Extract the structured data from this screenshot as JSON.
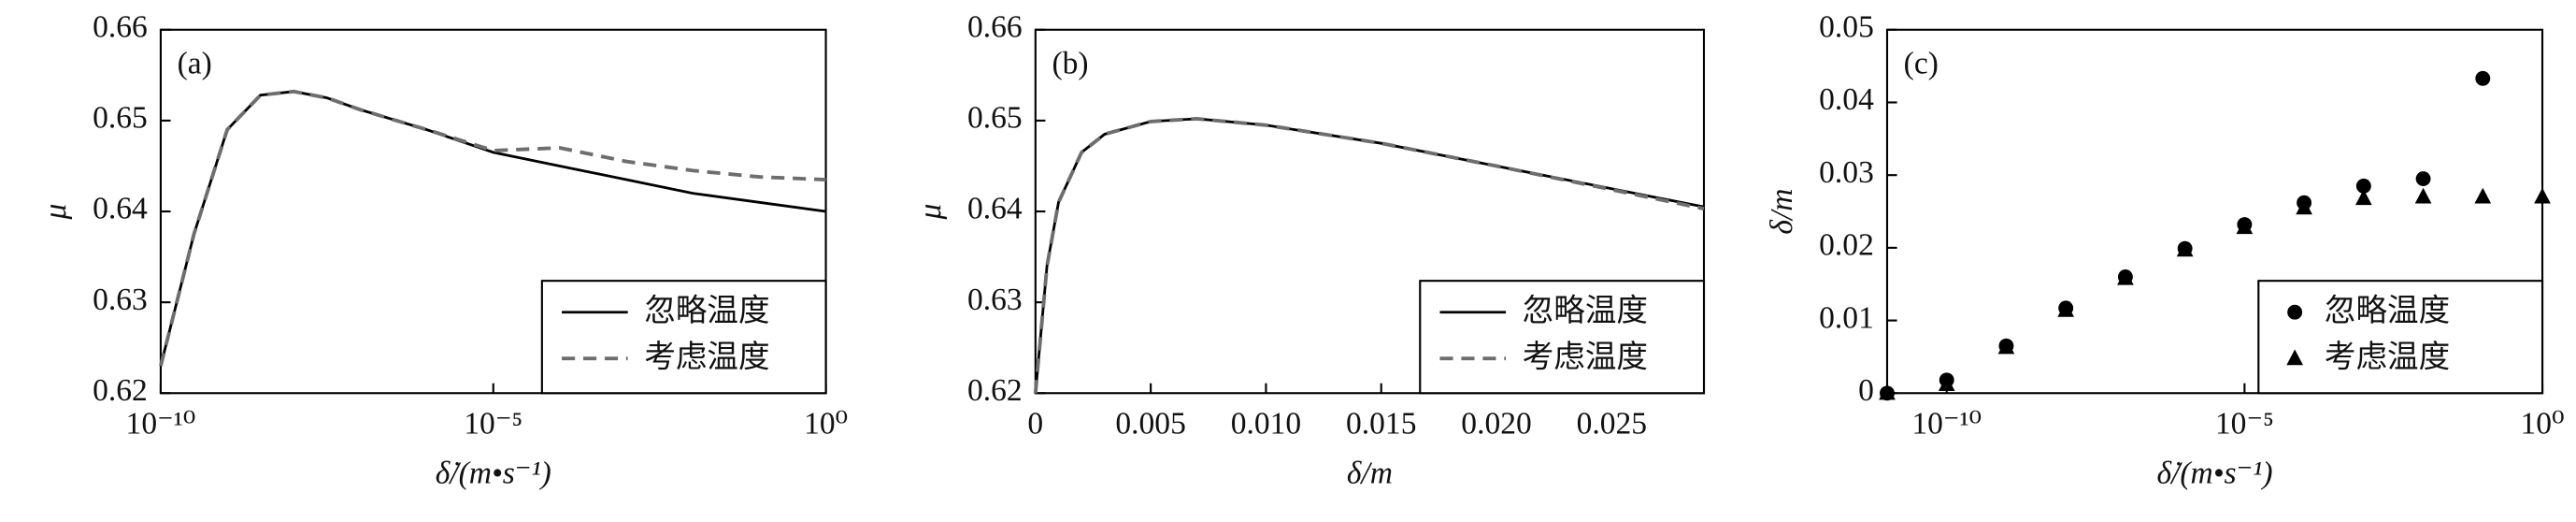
{
  "chart_data": [
    {
      "type": "line",
      "panel_label": "(a)",
      "xlabel": "δ̇/(m•s⁻¹)",
      "ylabel": "μ",
      "xscale": "log",
      "xlim": [
        1e-10,
        1
      ],
      "xticks": [
        {
          "value": 1e-10,
          "label": "10⁻¹⁰"
        },
        {
          "value": 1e-05,
          "label": "10⁻⁵"
        },
        {
          "value": 1,
          "label": "10⁰"
        }
      ],
      "ylim": [
        0.62,
        0.66
      ],
      "yticks": [
        0.62,
        0.63,
        0.64,
        0.65,
        0.66
      ],
      "legend": "lower right",
      "x": [
        1e-10,
        3.16e-10,
        1e-09,
        3.16e-09,
        1e-08,
        3.16e-08,
        1e-07,
        1e-06,
        1e-05,
        0.0001,
        0.001,
        0.01,
        0.1,
        1
      ],
      "series": [
        {
          "name": "忽略温度",
          "color": "#000000",
          "linestyle": "solid",
          "values": [
            0.623,
            0.6375,
            0.649,
            0.6528,
            0.6532,
            0.6525,
            0.6512,
            0.649,
            0.6465,
            0.645,
            0.6435,
            0.642,
            0.641,
            0.64
          ]
        },
        {
          "name": "考虑温度",
          "color": "#6e6e6e",
          "linestyle": "dashed",
          "values": [
            0.623,
            0.6375,
            0.649,
            0.6528,
            0.6532,
            0.6525,
            0.6512,
            0.649,
            0.6467,
            0.647,
            0.6455,
            0.6445,
            0.6438,
            0.6435
          ]
        }
      ]
    },
    {
      "type": "line",
      "panel_label": "(b)",
      "xlabel": "δ/m",
      "ylabel": "μ",
      "xscale": "linear",
      "xlim": [
        0,
        0.029
      ],
      "xticks": [
        0,
        0.005,
        {
          "value": 0.01,
          "label": "0.010"
        },
        0.015,
        {
          "value": 0.02,
          "label": "0.020"
        },
        0.025
      ],
      "ylim": [
        0.62,
        0.66
      ],
      "yticks": [
        0.62,
        0.63,
        0.64,
        0.65,
        0.66
      ],
      "legend": "lower right",
      "x": [
        0,
        0.0005,
        0.001,
        0.002,
        0.003,
        0.005,
        0.007,
        0.01,
        0.015,
        0.02,
        0.025,
        0.029
      ],
      "series": [
        {
          "name": "忽略温度",
          "color": "#000000",
          "linestyle": "solid",
          "values": [
            0.62,
            0.634,
            0.641,
            0.6465,
            0.6485,
            0.6499,
            0.6502,
            0.6495,
            0.6475,
            0.645,
            0.6425,
            0.6405
          ]
        },
        {
          "name": "考虑温度",
          "color": "#6e6e6e",
          "linestyle": "dashed",
          "values": [
            0.62,
            0.634,
            0.641,
            0.6465,
            0.6485,
            0.6499,
            0.6502,
            0.6495,
            0.6475,
            0.645,
            0.6424,
            0.6403
          ]
        }
      ]
    },
    {
      "type": "scatter",
      "panel_label": "(c)",
      "xlabel": "δ̇/(m•s⁻¹)",
      "ylabel": "δ/m",
      "xscale": "log",
      "xlim": [
        1e-11,
        1
      ],
      "xticks": [
        {
          "value": 1e-10,
          "label": "10⁻¹⁰"
        },
        {
          "value": 1e-05,
          "label": "10⁻⁵"
        },
        {
          "value": 1,
          "label": "10⁰"
        }
      ],
      "ylim": [
        0,
        0.05
      ],
      "yticks": [
        0,
        0.01,
        0.02,
        0.03,
        0.04,
        0.05
      ],
      "legend": "lower right",
      "x": [
        1e-11,
        1e-10,
        1e-09,
        1e-08,
        1e-07,
        1e-06,
        1e-05,
        0.0001,
        0.001,
        0.01,
        0.1,
        1
      ],
      "series": [
        {
          "name": "忽略温度",
          "color": "#000000",
          "marker": "circle",
          "values": [
            0,
            0.0018,
            0.0065,
            0.0117,
            0.016,
            0.0199,
            0.0232,
            0.0262,
            0.0285,
            0.0295,
            0.0433,
            null
          ]
        },
        {
          "name": "考虑温度",
          "color": "#000000",
          "marker": "triangle",
          "values": [
            0,
            0.0012,
            0.0063,
            0.0114,
            0.0158,
            0.0197,
            0.0228,
            0.0255,
            0.0268,
            0.027,
            0.027,
            0.027
          ]
        }
      ]
    }
  ]
}
